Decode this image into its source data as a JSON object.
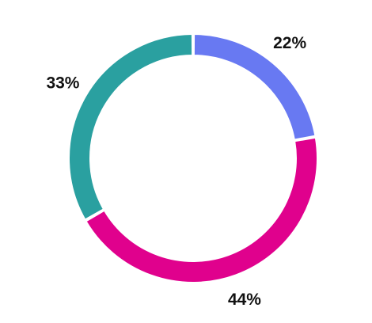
{
  "chart_data": {
    "type": "pie",
    "variant": "donut",
    "title": "",
    "legend": "none",
    "slices": [
      {
        "value": 22,
        "label": "22%",
        "color": "#6879f2"
      },
      {
        "value": 44,
        "label": "44%",
        "color": "#e0018d"
      },
      {
        "value": 33,
        "label": "33%",
        "color": "#2aa0a0"
      }
    ],
    "start_angle_deg": 0,
    "direction": "clockwise"
  }
}
